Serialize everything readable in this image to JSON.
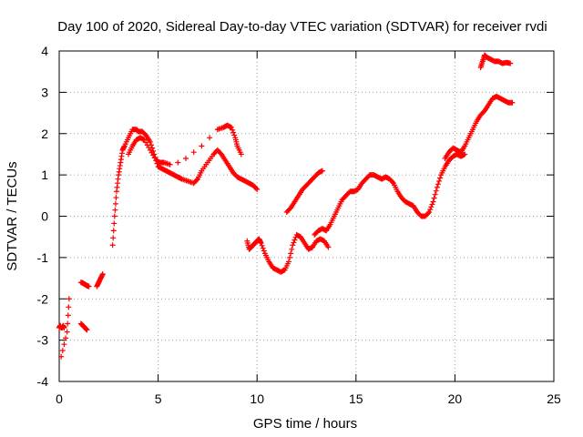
{
  "chart_data": {
    "type": "scatter",
    "title": "Day 100 of 2020, Sidereal Day-to-day VTEC variation (SDTVAR) for receiver rvdi",
    "xlabel": "GPS time / hours",
    "ylabel": "SDTVAR / TECUs",
    "xlim": [
      0,
      25
    ],
    "ylim": [
      -4,
      4
    ],
    "xticks": [
      0,
      5,
      10,
      15,
      20,
      25
    ],
    "yticks": [
      -4,
      -3,
      -2,
      -1,
      0,
      1,
      2,
      3,
      4
    ],
    "grid": true,
    "marker": "+",
    "color": "#ff0000",
    "series": [
      {
        "x": [
          0.0,
          0.05,
          0.1,
          0.15,
          0.2,
          0.25,
          0.1,
          0.4,
          0.5,
          1.1,
          1.2,
          1.3,
          1.4,
          1.5,
          1.1,
          1.2,
          1.3,
          1.4,
          1.9,
          2.0,
          2.1,
          2.2
        ],
        "y": [
          -2.7,
          -2.65,
          -2.7,
          -2.7,
          -2.65,
          -2.7,
          -3.4,
          -2.8,
          -2.0,
          -1.6,
          -1.62,
          -1.65,
          -1.68,
          -1.7,
          -2.6,
          -2.65,
          -2.7,
          -2.75,
          -1.7,
          -1.6,
          -1.5,
          -1.4
        ]
      },
      {
        "x": [
          2.7,
          2.8,
          2.9,
          3.0,
          3.1,
          3.2,
          3.3,
          3.5,
          3.7,
          3.9,
          4.0,
          4.2,
          4.4,
          4.6,
          4.8,
          5.0,
          5.2,
          5.4,
          5.6,
          5.8,
          6.0,
          6.2,
          6.5,
          6.8,
          7.0,
          7.2,
          7.5,
          7.8,
          8.0,
          8.2,
          8.4,
          8.6,
          8.8,
          9.0,
          9.2,
          9.4,
          9.6,
          9.8,
          10.0
        ],
        "y": [
          -0.7,
          0.0,
          0.6,
          1.0,
          1.3,
          1.6,
          1.7,
          1.9,
          2.1,
          2.1,
          2.05,
          2.05,
          1.95,
          1.8,
          1.5,
          1.2,
          1.15,
          1.1,
          1.05,
          1.0,
          0.95,
          0.9,
          0.85,
          0.8,
          0.9,
          1.1,
          1.3,
          1.5,
          1.6,
          1.5,
          1.35,
          1.2,
          1.05,
          0.95,
          0.9,
          0.85,
          0.8,
          0.75,
          0.65
        ]
      },
      {
        "x": [
          3.5,
          3.7,
          3.9,
          4.1,
          4.3,
          4.6,
          4.9,
          5.1,
          5.3,
          5.6,
          6.0,
          6.4,
          6.8,
          7.2,
          7.6,
          8.0,
          8.3,
          8.5,
          8.7,
          8.9,
          9.0,
          9.2
        ],
        "y": [
          1.5,
          1.7,
          1.85,
          1.9,
          1.85,
          1.6,
          1.35,
          1.3,
          1.3,
          1.25,
          1.3,
          1.4,
          1.55,
          1.7,
          1.9,
          2.1,
          2.15,
          2.2,
          2.15,
          1.9,
          1.7,
          1.5
        ]
      },
      {
        "x": [
          9.5,
          9.6,
          9.7,
          9.8,
          9.9,
          10.0,
          10.1,
          10.2,
          10.4,
          10.6,
          10.8,
          11.0,
          11.2,
          11.4,
          11.6,
          11.8,
          12.0,
          12.2,
          12.4,
          12.6,
          12.8,
          13.0,
          13.2,
          13.4,
          13.6
        ],
        "y": [
          -0.6,
          -0.8,
          -0.75,
          -0.7,
          -0.65,
          -0.6,
          -0.55,
          -0.65,
          -0.9,
          -1.1,
          -1.25,
          -1.3,
          -1.35,
          -1.3,
          -1.1,
          -0.7,
          -0.45,
          -0.5,
          -0.65,
          -0.8,
          -0.75,
          -0.6,
          -0.55,
          -0.6,
          -0.75
        ]
      },
      {
        "x": [
          11.5,
          11.7,
          11.9,
          12.1,
          12.3,
          12.5,
          12.7,
          12.9,
          13.1,
          13.3
        ],
        "y": [
          0.1,
          0.2,
          0.35,
          0.5,
          0.65,
          0.75,
          0.85,
          0.95,
          1.05,
          1.1
        ]
      },
      {
        "x": [
          12.9,
          13.1,
          13.3,
          13.5,
          13.7,
          13.9,
          14.1,
          14.3,
          14.5,
          14.7,
          14.9,
          15.1,
          15.3,
          15.5,
          15.7,
          15.9,
          16.1,
          16.3,
          16.5,
          16.7,
          16.9,
          17.1,
          17.3,
          17.5,
          17.7,
          17.9,
          18.1,
          18.3,
          18.5,
          18.7,
          18.9,
          19.1,
          19.3,
          19.5,
          19.7,
          19.9,
          20.1,
          20.3,
          20.5
        ],
        "y": [
          -0.45,
          -0.35,
          -0.3,
          -0.35,
          -0.2,
          0.0,
          0.2,
          0.4,
          0.5,
          0.6,
          0.6,
          0.65,
          0.8,
          0.9,
          1.0,
          1.0,
          0.95,
          0.9,
          0.95,
          0.9,
          0.8,
          0.6,
          0.45,
          0.35,
          0.3,
          0.25,
          0.1,
          0.0,
          0.0,
          0.1,
          0.35,
          0.7,
          1.0,
          1.2,
          1.35,
          1.45,
          1.5,
          1.45,
          1.5
        ]
      },
      {
        "x": [
          19.5,
          19.7,
          19.9,
          20.1,
          20.3,
          20.5,
          20.7,
          20.9,
          21.1,
          21.3,
          21.5,
          21.7,
          21.9,
          22.1,
          22.3,
          22.5,
          22.7,
          22.9
        ],
        "y": [
          1.4,
          1.55,
          1.65,
          1.6,
          1.55,
          1.7,
          1.9,
          2.1,
          2.3,
          2.45,
          2.55,
          2.7,
          2.85,
          2.9,
          2.85,
          2.8,
          2.75,
          2.75
        ]
      },
      {
        "x": [
          21.3,
          21.4,
          21.5,
          21.6,
          21.8,
          22.0,
          22.2,
          22.4,
          22.6,
          22.8
        ],
        "y": [
          3.6,
          3.75,
          3.9,
          3.85,
          3.8,
          3.75,
          3.75,
          3.7,
          3.72,
          3.7
        ]
      }
    ]
  }
}
